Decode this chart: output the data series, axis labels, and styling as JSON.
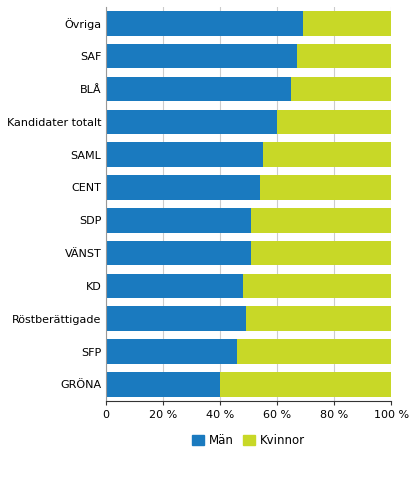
{
  "categories": [
    "GRÖNA",
    "SFP",
    "Röstberättigade",
    "KD",
    "VÄNST",
    "SDP",
    "CENT",
    "SAML",
    "Kandidater totalt",
    "BLÅ",
    "SAF",
    "Övriga"
  ],
  "man_values": [
    40,
    46,
    49,
    48,
    51,
    51,
    54,
    55,
    60,
    65,
    67,
    69
  ],
  "kvinnor_values": [
    60,
    54,
    51,
    52,
    49,
    49,
    46,
    45,
    40,
    35,
    33,
    31
  ],
  "man_color": "#1a7abf",
  "kvinnor_color": "#c8d827",
  "xlabel_ticks": [
    0,
    20,
    40,
    60,
    80,
    100
  ],
  "legend_man": "Män",
  "legend_kvinnor": "Kvinnor",
  "bar_height": 0.75,
  "background_color": "#ffffff",
  "grid_color": "#cccccc",
  "label_fontsize": 8.0,
  "tick_fontsize": 8.0,
  "legend_fontsize": 8.5
}
